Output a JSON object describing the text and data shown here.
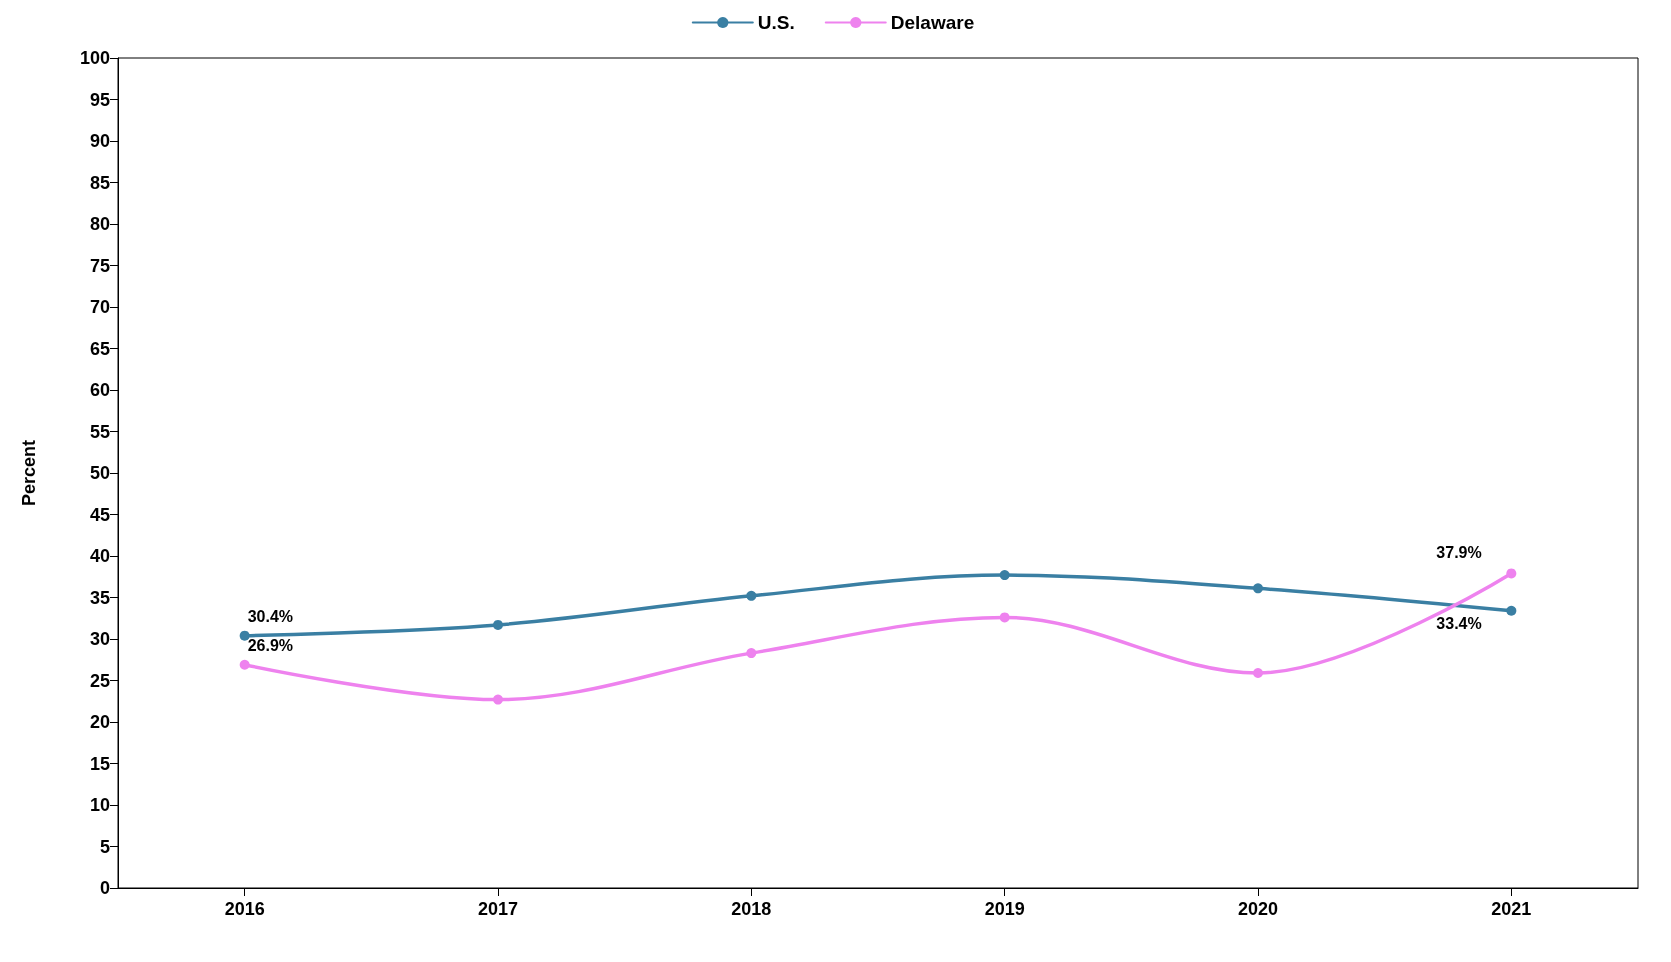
{
  "chart_data": {
    "type": "line",
    "ylabel": "Percent",
    "categories": [
      "2016",
      "2017",
      "2018",
      "2019",
      "2020",
      "2021"
    ],
    "series": [
      {
        "name": "U.S.",
        "color": "#3a7fa3",
        "values": [
          30.4,
          31.7,
          35.2,
          37.7,
          36.1,
          33.4
        ],
        "value_labels": [
          "30.4%",
          null,
          null,
          null,
          null,
          "33.4%"
        ]
      },
      {
        "name": "Delaware",
        "color": "#ee82ee",
        "values": [
          26.9,
          22.7,
          28.3,
          32.6,
          25.9,
          37.9
        ],
        "value_labels": [
          "26.9%",
          null,
          null,
          null,
          null,
          "37.9%"
        ]
      }
    ],
    "ylim": [
      0,
      100
    ],
    "yticks": [
      0,
      5,
      10,
      15,
      20,
      25,
      30,
      35,
      40,
      45,
      50,
      55,
      60,
      65,
      70,
      75,
      80,
      85,
      90,
      95,
      100
    ],
    "grid": false,
    "legend": "top",
    "marker": "circle",
    "line_style": "solid"
  }
}
